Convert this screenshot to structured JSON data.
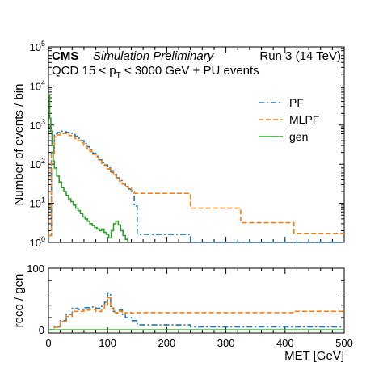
{
  "chart_data": [
    {
      "type": "line",
      "step": true,
      "title": "",
      "header": {
        "experiment": "CMS",
        "status": "Simulation Preliminary",
        "run": "Run 3 (14 TeV)",
        "process_prefix": "QCD 15 < p",
        "process_sub": "T",
        "process_suffix": " < 3000 GeV + PU events"
      },
      "xlabel": "MET [GeV]",
      "ylabel": "Number of events / bin",
      "xlim": [
        0,
        500
      ],
      "ylim": [
        1,
        100000
      ],
      "yscale": "log",
      "xticks": [
        0,
        100,
        200,
        300,
        400,
        500
      ],
      "yticks": [
        1,
        10,
        100,
        1000,
        10000,
        100000
      ],
      "ytick_labels": [
        {
          "base": "10",
          "exp": "0"
        },
        {
          "base": "10",
          "exp": "1"
        },
        {
          "base": "10",
          "exp": "2"
        },
        {
          "base": "10",
          "exp": "3"
        },
        {
          "base": "10",
          "exp": "4"
        },
        {
          "base": "10",
          "exp": "5"
        }
      ],
      "legend_position": "upper-right",
      "series": [
        {
          "name": "PF",
          "color": "#1f77b4",
          "dash": "dash-dot",
          "x": [
            0,
            5,
            10,
            15,
            20,
            25,
            30,
            35,
            40,
            45,
            50,
            55,
            60,
            65,
            70,
            75,
            80,
            85,
            90,
            95,
            100,
            105,
            110,
            115,
            120,
            125,
            130,
            135,
            140,
            145,
            150,
            240,
            325,
            500
          ],
          "y": [
            1.5,
            200,
            600,
            650,
            700,
            680,
            650,
            620,
            580,
            520,
            460,
            400,
            340,
            280,
            230,
            190,
            160,
            130,
            110,
            95,
            80,
            65,
            55,
            45,
            38,
            32,
            27,
            23,
            20,
            8.5,
            1.6,
            1.0,
            1.0,
            1.0
          ]
        },
        {
          "name": "MLPF",
          "color": "#ff7f0e",
          "dash": "dashed",
          "x": [
            0,
            5,
            10,
            15,
            20,
            25,
            30,
            35,
            40,
            45,
            50,
            55,
            60,
            65,
            70,
            75,
            80,
            85,
            90,
            95,
            100,
            105,
            110,
            115,
            120,
            125,
            130,
            135,
            140,
            145,
            150,
            240,
            325,
            415,
            500
          ],
          "y": [
            1.5,
            180,
            500,
            560,
            620,
            610,
            580,
            540,
            500,
            450,
            400,
            350,
            300,
            250,
            210,
            180,
            150,
            125,
            105,
            90,
            75,
            62,
            52,
            44,
            37,
            31,
            27,
            24,
            21,
            18,
            18,
            7.5,
            3.2,
            1.7,
            1.7
          ]
        },
        {
          "name": "gen",
          "color": "#2ca02c",
          "dash": "solid",
          "x": [
            0,
            2,
            4,
            6,
            8,
            10,
            14,
            18,
            22,
            26,
            30,
            34,
            38,
            42,
            46,
            50,
            54,
            58,
            62,
            66,
            70,
            74,
            78,
            82,
            86,
            90,
            94,
            98,
            102,
            106,
            110,
            114,
            118,
            122,
            126,
            130,
            134
          ],
          "y": [
            6000,
            1500,
            700,
            300,
            120,
            80,
            50,
            35,
            25,
            20,
            16,
            13,
            11,
            9,
            7.5,
            6.5,
            5.5,
            4.5,
            4,
            3.5,
            3,
            2.7,
            2.4,
            2.2,
            2,
            2.2,
            1.8,
            1.6,
            1.3,
            2,
            3,
            3.5,
            2.8,
            2,
            1.5,
            1.2,
            1.0
          ]
        }
      ]
    },
    {
      "type": "line",
      "step": true,
      "xlabel": "MET [GeV]",
      "ylabel": "reco / gen",
      "xlim": [
        0,
        500
      ],
      "ylim": [
        -5,
        100
      ],
      "yticks": [
        0,
        100
      ],
      "xticks": [
        0,
        100,
        200,
        300,
        400,
        500
      ],
      "series": [
        {
          "name": "PF",
          "color": "#1f77b4",
          "dash": "dash-dot",
          "x": [
            0,
            10,
            20,
            30,
            40,
            50,
            60,
            70,
            80,
            90,
            95,
            100,
            105,
            110,
            115,
            120,
            125,
            130,
            140,
            150,
            240,
            325,
            500
          ],
          "y": [
            0,
            5,
            15,
            25,
            35,
            33,
            36,
            37,
            35,
            40,
            45,
            60,
            38,
            30,
            28,
            32,
            25,
            20,
            15,
            8,
            5,
            5,
            5
          ]
        },
        {
          "name": "MLPF",
          "color": "#ff7f0e",
          "dash": "dashed",
          "x": [
            0,
            10,
            20,
            30,
            40,
            50,
            60,
            70,
            80,
            90,
            95,
            100,
            105,
            110,
            115,
            120,
            125,
            130,
            140,
            150,
            240,
            325,
            415,
            500
          ],
          "y": [
            0,
            4,
            14,
            22,
            30,
            30,
            32,
            33,
            30,
            35,
            40,
            52,
            35,
            28,
            27,
            30,
            26,
            28,
            27,
            28,
            28,
            28,
            30,
            30
          ]
        },
        {
          "name": "gen",
          "color": "#2ca02c",
          "dash": "solid",
          "x": [
            0,
            500
          ],
          "y": [
            0,
            0
          ]
        }
      ]
    }
  ]
}
